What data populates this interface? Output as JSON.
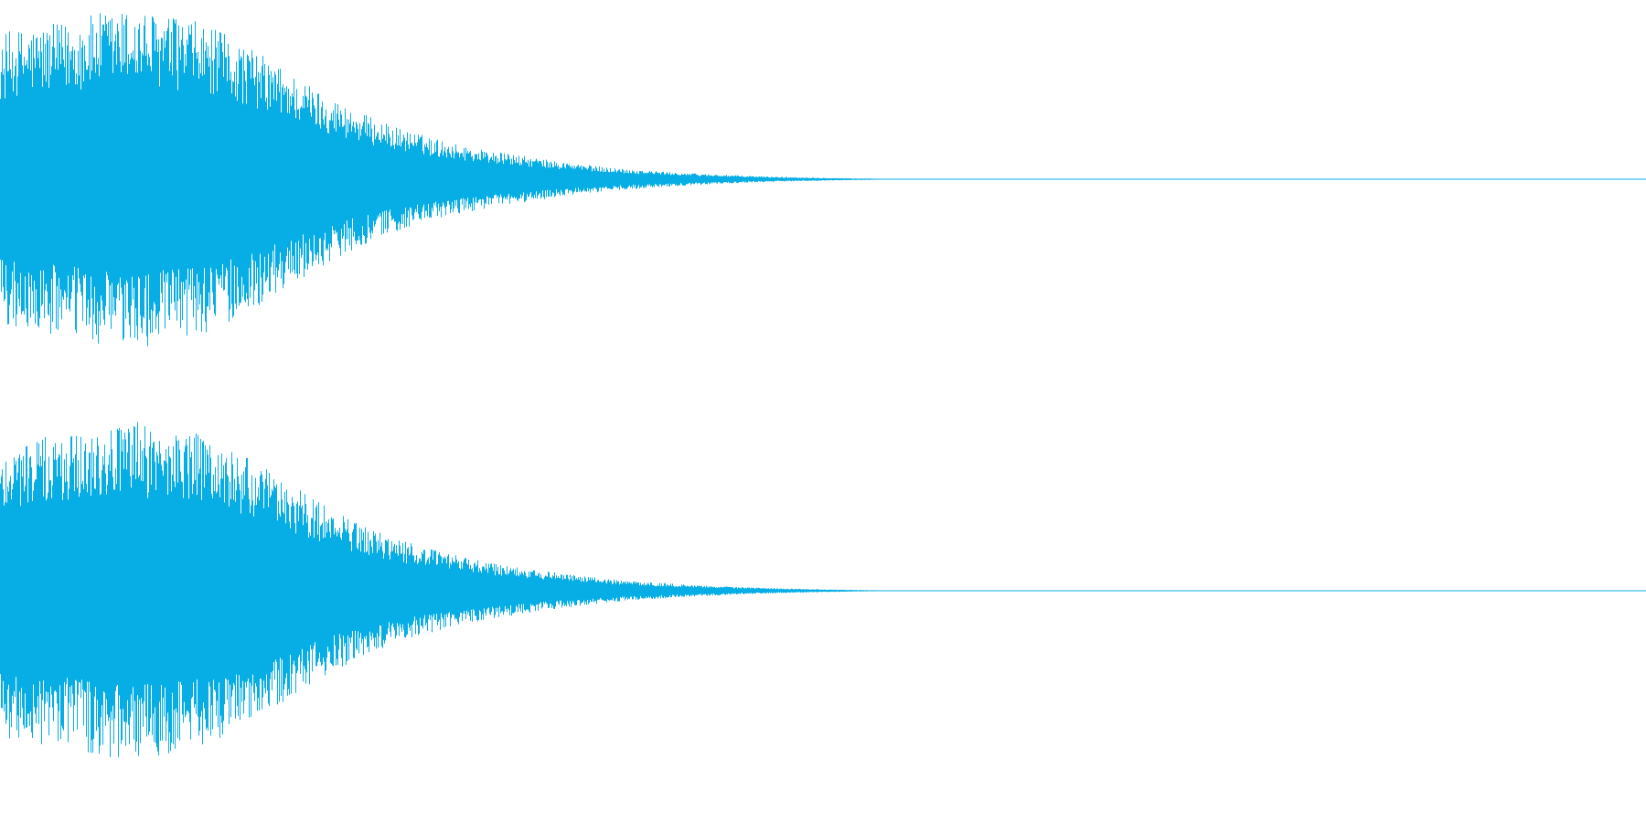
{
  "waveform": {
    "color": "#07aee6",
    "background": "#ffffff",
    "channels": [
      {
        "name": "",
        "amplitude_envelope": [
          0.86,
          0.9,
          0.92,
          0.98,
          1.0,
          0.97,
          0.93,
          0.85,
          0.74,
          0.62,
          0.5,
          0.4,
          0.32,
          0.26,
          0.21,
          0.17,
          0.14,
          0.11,
          0.085,
          0.065,
          0.05,
          0.038,
          0.028,
          0.02,
          0.014,
          0.01,
          0.006,
          0.003,
          0.0,
          0.0
        ],
        "peak_spikes": [
          1.0,
          0.95,
          0.88
        ]
      },
      {
        "name": "",
        "amplitude_envelope": [
          0.86,
          0.9,
          0.92,
          0.98,
          1.0,
          0.97,
          0.93,
          0.85,
          0.74,
          0.62,
          0.5,
          0.4,
          0.32,
          0.26,
          0.21,
          0.17,
          0.14,
          0.11,
          0.085,
          0.065,
          0.05,
          0.038,
          0.028,
          0.02,
          0.014,
          0.01,
          0.006,
          0.003,
          0.0,
          0.0
        ],
        "peak_spikes": [
          1.0,
          0.95,
          0.88
        ]
      }
    ]
  }
}
